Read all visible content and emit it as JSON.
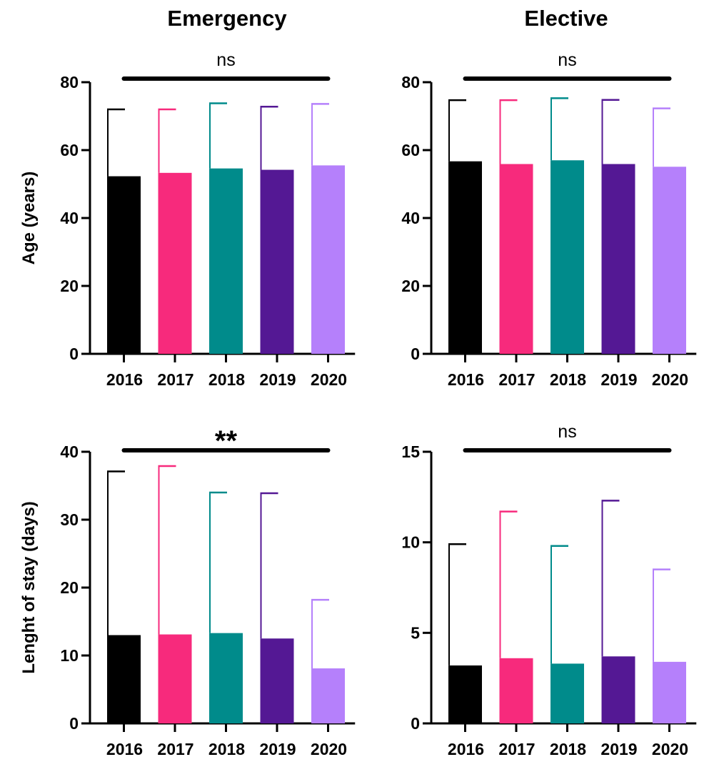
{
  "column_titles": [
    "Emergency",
    "Elective"
  ],
  "row_titles": [
    "Age (years)",
    "Lenght of stay (days)"
  ],
  "colors": {
    "2016": "#000000",
    "2017": "#f72a7c",
    "2018": "#008b8b",
    "2019": "#541894",
    "2020": "#b580fb"
  },
  "chart_data": [
    {
      "type": "bar",
      "title": "Emergency",
      "ylabel": "Age (years)",
      "categories": [
        "2016",
        "2017",
        "2018",
        "2019",
        "2020"
      ],
      "values": [
        52.3,
        53.3,
        54.6,
        54.2,
        55.5
      ],
      "error_upper": [
        72.0,
        72.0,
        73.8,
        72.8,
        73.6
      ],
      "ylim": [
        0,
        80
      ],
      "yticks": [
        "0",
        "20",
        "40",
        "60",
        "80"
      ],
      "significance": "ns"
    },
    {
      "type": "bar",
      "title": "Elective",
      "ylabel": "",
      "categories": [
        "2016",
        "2017",
        "2018",
        "2019",
        "2020"
      ],
      "values": [
        56.7,
        55.9,
        57.0,
        55.9,
        55.1
      ],
      "error_upper": [
        74.7,
        74.7,
        75.3,
        74.8,
        72.3
      ],
      "ylim": [
        0,
        80
      ],
      "yticks": [
        "0",
        "20",
        "40",
        "60",
        "80"
      ],
      "significance": "ns"
    },
    {
      "type": "bar",
      "title": "",
      "ylabel": "Lenght of stay (days)",
      "categories": [
        "2016",
        "2017",
        "2018",
        "2019",
        "2020"
      ],
      "values": [
        13.0,
        13.1,
        13.3,
        12.5,
        8.1
      ],
      "error_upper": [
        37.1,
        37.9,
        34.0,
        33.9,
        18.2
      ],
      "ylim": [
        0,
        40
      ],
      "yticks": [
        "0",
        "10",
        "20",
        "30",
        "40"
      ],
      "significance": "**"
    },
    {
      "type": "bar",
      "title": "",
      "ylabel": "",
      "categories": [
        "2016",
        "2017",
        "2018",
        "2019",
        "2020"
      ],
      "values": [
        3.2,
        3.6,
        3.3,
        3.7,
        3.4
      ],
      "error_upper": [
        9.9,
        11.7,
        9.8,
        12.3,
        8.5
      ],
      "ylim": [
        0,
        15
      ],
      "yticks": [
        "0",
        "5",
        "10",
        "15"
      ],
      "significance": "ns"
    }
  ]
}
